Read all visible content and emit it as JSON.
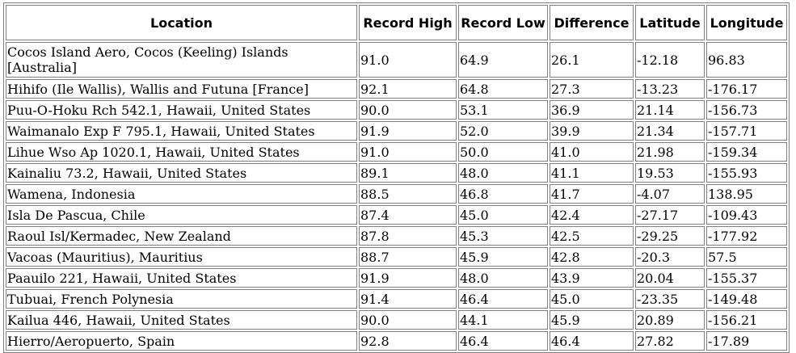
{
  "table": {
    "headers": [
      "Location",
      "Record High",
      "Record Low",
      "Difference",
      "Latitude",
      "Longitude"
    ],
    "rows": [
      [
        "Cocos Island Aero, Cocos (Keeling) Islands [Australia]",
        "91.0",
        "64.9",
        "26.1",
        "-12.18",
        "96.83"
      ],
      [
        "Hihifo (Ile Wallis), Wallis and Futuna [France]",
        "92.1",
        "64.8",
        "27.3",
        "-13.23",
        "-176.17"
      ],
      [
        "Puu-O-Hoku Rch 542.1, Hawaii, United States",
        "90.0",
        "53.1",
        "36.9",
        "21.14",
        "-156.73"
      ],
      [
        "Waimanalo Exp F 795.1, Hawaii, United States",
        "91.9",
        "52.0",
        "39.9",
        "21.34",
        "-157.71"
      ],
      [
        "Lihue Wso Ap 1020.1, Hawaii, United States",
        "91.0",
        "50.0",
        "41.0",
        "21.98",
        "-159.34"
      ],
      [
        "Kainaliu 73.2, Hawaii, United States",
        "89.1",
        "48.0",
        "41.1",
        "19.53",
        "-155.93"
      ],
      [
        "Wamena, Indonesia",
        "88.5",
        "46.8",
        "41.7",
        "-4.07",
        "138.95"
      ],
      [
        "Isla De Pascua, Chile",
        "87.4",
        "45.0",
        "42.4",
        "-27.17",
        "-109.43"
      ],
      [
        "Raoul Isl/Kermadec, New Zealand",
        "87.8",
        "45.3",
        "42.5",
        "-29.25",
        "-177.92"
      ],
      [
        "Vacoas (Mauritius), Mauritius",
        "88.7",
        "45.9",
        "42.8",
        "-20.3",
        "57.5"
      ],
      [
        "Paauilo 221, Hawaii, United States",
        "91.9",
        "48.0",
        "43.9",
        "20.04",
        "-155.37"
      ],
      [
        "Tubuai, French Polynesia",
        "91.4",
        "46.4",
        "45.0",
        "-23.35",
        "-149.48"
      ],
      [
        "Kailua 446, Hawaii, United States",
        "90.0",
        "44.1",
        "45.9",
        "20.89",
        "-156.21"
      ],
      [
        "Hierro/Aeropuerto, Spain",
        "92.8",
        "46.4",
        "46.4",
        "27.82",
        "-17.89"
      ]
    ]
  }
}
